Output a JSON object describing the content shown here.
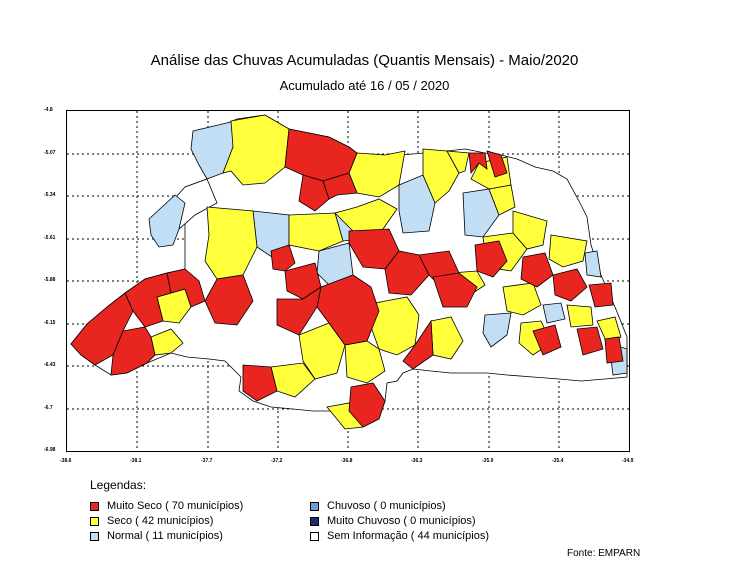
{
  "header": {
    "title": "Análise das Chuvas Acumuladas (Quantis Mensais) - Maio/2020",
    "subtitle": "Acumulado até  16 / 05 / 2020"
  },
  "map": {
    "y_ticks": [
      "-4.8",
      "-5.07",
      "-5.34",
      "-5.61",
      "-5.88",
      "-6.15",
      "-6.43",
      "-6.7",
      "-6.98"
    ],
    "x_ticks": [
      "-38.6",
      "-38.1",
      "-37.7",
      "-37.2",
      "-36.8",
      "-36.3",
      "-35.9",
      "-35.4",
      "-34.9"
    ]
  },
  "legend": {
    "title": "Legendas:",
    "items": [
      {
        "label": "Muito Seco ( 70 municípios)",
        "color": "#e8251f"
      },
      {
        "label": "Seco ( 42 municípios)",
        "color": "#ffff3c"
      },
      {
        "label": "Normal ( 11 municípios)",
        "color": "#c1def5"
      },
      {
        "label": "Chuvoso ( 0 municípios)",
        "color": "#6d9ed5"
      },
      {
        "label": "Muito Chuvoso ( 0 municípios)",
        "color": "#1b2c6b"
      },
      {
        "label": "Sem Informação ( 44 municípios)",
        "color": "#ffffff"
      }
    ]
  },
  "source": "Fonte: EMPARN"
}
